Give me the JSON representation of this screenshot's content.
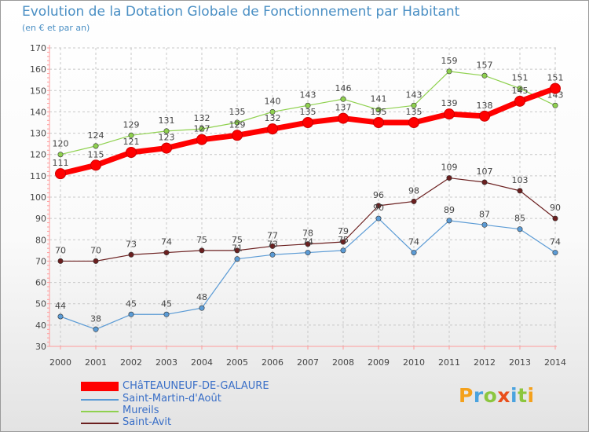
{
  "chart_data": {
    "type": "line",
    "title": "Evolution de la Dotation Globale de Fonctionnement par Habitant",
    "subtitle": "(en € et par an)",
    "xlabel": "",
    "ylabel": "",
    "x": [
      2000,
      2001,
      2002,
      2003,
      2004,
      2005,
      2006,
      2007,
      2008,
      2009,
      2010,
      2011,
      2012,
      2013,
      2014
    ],
    "ylim": [
      30,
      170
    ],
    "yticks": [
      30,
      40,
      50,
      60,
      70,
      80,
      90,
      100,
      110,
      120,
      130,
      140,
      150,
      160,
      170
    ],
    "grid": true,
    "legend_position": "bottom-left",
    "series": [
      {
        "name": "Mureils",
        "color": "#8fd14f",
        "values": [
          120,
          124,
          129,
          131,
          132,
          135,
          140,
          143,
          146,
          141,
          143,
          159,
          157,
          151,
          143
        ]
      },
      {
        "name": "Saint-Avit",
        "color": "#6b1f1f",
        "values": [
          70,
          70,
          73,
          74,
          75,
          75,
          77,
          78,
          79,
          96,
          98,
          109,
          107,
          103,
          90
        ]
      },
      {
        "name": "Saint-Martin-d'Août",
        "color": "#5b9bd5",
        "values": [
          44,
          38,
          45,
          45,
          48,
          71,
          73,
          74,
          75,
          90,
          74,
          89,
          87,
          85,
          74
        ]
      },
      {
        "name": "CHâTEAUNEUF-DE-GALAURE",
        "color": "#ff0000",
        "values": [
          111,
          115,
          121,
          123,
          127,
          129,
          132,
          135,
          137,
          135,
          135,
          139,
          138,
          145,
          151
        ]
      }
    ]
  },
  "legend": [
    {
      "label": "CHâTEAUNEUF-DE-GALAURE",
      "color": "#ff0000"
    },
    {
      "label": "Saint-Martin-d'Août",
      "color": "#5b9bd5"
    },
    {
      "label": "Mureils",
      "color": "#8fd14f"
    },
    {
      "label": "Saint-Avit",
      "color": "#6b1f1f"
    }
  ],
  "logo": {
    "text": "Proxiti",
    "letters": [
      {
        "ch": "P",
        "color": "#f4a11c"
      },
      {
        "ch": "r",
        "color": "#4aa3df"
      },
      {
        "ch": "o",
        "color": "#8cc63f"
      },
      {
        "ch": "x",
        "color": "#e94e1b"
      },
      {
        "ch": "i",
        "color": "#4aa3df"
      },
      {
        "ch": "t",
        "color": "#8cc63f"
      },
      {
        "ch": "i",
        "color": "#f4a11c"
      }
    ]
  }
}
